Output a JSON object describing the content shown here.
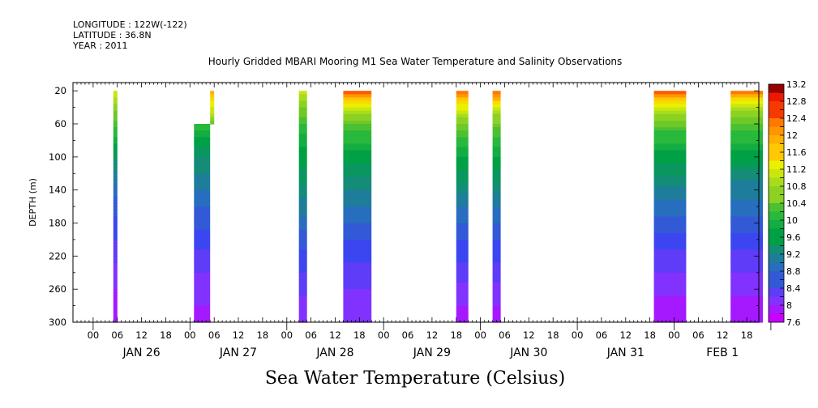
{
  "meta": {
    "longitude": "LONGITUDE : 122W(-122)",
    "latitude": "LATITUDE : 36.8N",
    "year": "YEAR : 2011"
  },
  "chart_data": {
    "type": "heatmap",
    "title": "Hourly Gridded MBARI Mooring M1 Sea Water Temperature and Salinity Observations",
    "subtitle": "Sea Water Temperature (Celsius)",
    "ylabel": "DEPTH (m)",
    "xlabel": "",
    "x_range_hours": [
      -5,
      165
    ],
    "ylim": [
      300,
      10
    ],
    "y_ticks": [
      20,
      60,
      100,
      140,
      180,
      220,
      260,
      300
    ],
    "x_tick_labels": [
      "00",
      "06",
      "12",
      "18",
      "00",
      "06",
      "12",
      "18",
      "00",
      "06",
      "12",
      "18",
      "00",
      "06",
      "12",
      "18",
      "00",
      "06",
      "12",
      "18",
      "00",
      "06",
      "12",
      "18",
      "00",
      "06",
      "12",
      "18"
    ],
    "day_labels": [
      "JAN 26",
      "JAN 27",
      "JAN 28",
      "JAN 29",
      "JAN 30",
      "JAN 31",
      "FEB  1"
    ],
    "colorbar": {
      "min": 7.6,
      "max": 13.2,
      "step": 0.2,
      "labels": [
        "13.2",
        "12.8",
        "12.4",
        "12",
        "11.6",
        "11.2",
        "10.8",
        "10.4",
        "10",
        "9.6",
        "9.2",
        "8.8",
        "8.4",
        "8",
        "7.6"
      ]
    },
    "blocks": [
      {
        "start_hour": 5,
        "end_hour": 6,
        "top_depth": 20,
        "profile": [
          [
            20,
            11.1
          ],
          [
            40,
            10.6
          ],
          [
            60,
            10.2
          ],
          [
            80,
            9.8
          ],
          [
            100,
            9.4
          ],
          [
            120,
            9.0
          ],
          [
            160,
            8.6
          ],
          [
            200,
            8.3
          ],
          [
            240,
            8.0
          ],
          [
            280,
            7.8
          ],
          [
            300,
            7.7
          ]
        ]
      },
      {
        "start_hour": 25,
        "end_hour": 29,
        "top_depth": 60,
        "profile": [
          [
            60,
            10.1
          ],
          [
            80,
            9.6
          ],
          [
            100,
            9.3
          ],
          [
            130,
            9.0
          ],
          [
            160,
            8.7
          ],
          [
            200,
            8.4
          ],
          [
            240,
            8.1
          ],
          [
            280,
            7.9
          ],
          [
            300,
            7.8
          ]
        ]
      },
      {
        "start_hour": 29,
        "end_hour": 30,
        "top_depth": 20,
        "profile": [
          [
            20,
            11.8
          ],
          [
            30,
            11.3
          ],
          [
            50,
            10.8
          ],
          [
            60,
            10.4
          ]
        ]
      },
      {
        "start_hour": 51,
        "end_hour": 53,
        "top_depth": 20,
        "profile": [
          [
            20,
            11.0
          ],
          [
            40,
            10.5
          ],
          [
            60,
            10.1
          ],
          [
            80,
            9.8
          ],
          [
            100,
            9.6
          ],
          [
            130,
            9.3
          ],
          [
            160,
            9.0
          ],
          [
            200,
            8.6
          ],
          [
            240,
            8.3
          ],
          [
            280,
            8.0
          ],
          [
            300,
            7.9
          ]
        ]
      },
      {
        "start_hour": 62,
        "end_hour": 69,
        "top_depth": 20,
        "profile": [
          [
            20,
            12.6
          ],
          [
            25,
            12.0
          ],
          [
            35,
            11.3
          ],
          [
            50,
            10.6
          ],
          [
            70,
            10.1
          ],
          [
            100,
            9.6
          ],
          [
            130,
            9.2
          ],
          [
            160,
            8.9
          ],
          [
            200,
            8.5
          ],
          [
            240,
            8.2
          ],
          [
            280,
            8.0
          ],
          [
            300,
            7.9
          ]
        ]
      },
      {
        "start_hour": 90,
        "end_hour": 93,
        "top_depth": 20,
        "profile": [
          [
            20,
            12.4
          ],
          [
            30,
            11.6
          ],
          [
            50,
            10.8
          ],
          [
            70,
            10.2
          ],
          [
            100,
            9.7
          ],
          [
            130,
            9.3
          ],
          [
            160,
            8.9
          ],
          [
            200,
            8.5
          ],
          [
            240,
            8.2
          ],
          [
            280,
            7.9
          ],
          [
            300,
            7.8
          ]
        ]
      },
      {
        "start_hour": 99,
        "end_hour": 101,
        "top_depth": 20,
        "profile": [
          [
            20,
            12.4
          ],
          [
            35,
            11.4
          ],
          [
            50,
            10.7
          ],
          [
            70,
            10.2
          ],
          [
            100,
            9.7
          ],
          [
            130,
            9.3
          ],
          [
            160,
            8.9
          ],
          [
            200,
            8.5
          ],
          [
            240,
            8.2
          ],
          [
            280,
            7.9
          ],
          [
            300,
            7.8
          ]
        ]
      },
      {
        "start_hour": 139,
        "end_hour": 147,
        "top_depth": 20,
        "profile": [
          [
            20,
            12.6
          ],
          [
            30,
            11.5
          ],
          [
            45,
            10.8
          ],
          [
            70,
            10.1
          ],
          [
            100,
            9.6
          ],
          [
            130,
            9.2
          ],
          [
            160,
            8.8
          ],
          [
            200,
            8.4
          ],
          [
            240,
            8.1
          ],
          [
            280,
            7.8
          ],
          [
            300,
            7.7
          ]
        ]
      },
      {
        "start_hour": 158,
        "end_hour": 166,
        "top_depth": 20,
        "profile": [
          [
            20,
            12.4
          ],
          [
            30,
            11.4
          ],
          [
            45,
            10.7
          ],
          [
            70,
            10.1
          ],
          [
            100,
            9.6
          ],
          [
            130,
            9.1
          ],
          [
            160,
            8.8
          ],
          [
            200,
            8.4
          ],
          [
            240,
            8.1
          ],
          [
            280,
            7.8
          ],
          [
            300,
            7.7
          ]
        ]
      }
    ]
  }
}
